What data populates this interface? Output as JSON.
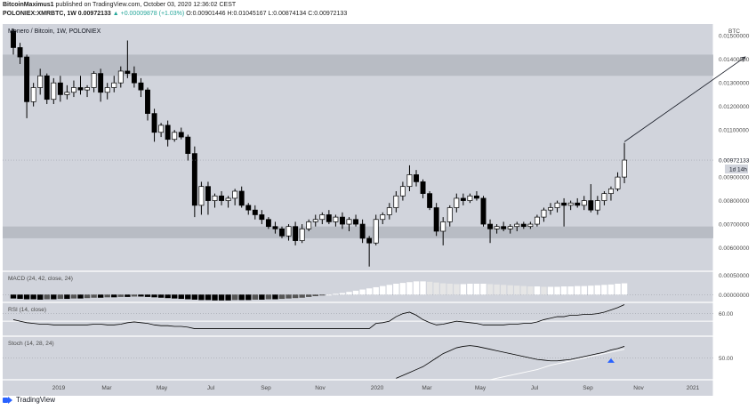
{
  "header": {
    "author": "BitcoinMaximus1",
    "published": "published on TradingView.com, October 03, 2020 12:36:02 CEST",
    "symbol": "POLONIEX:XMRBTC, 1W",
    "last": "0.00972133",
    "change": "▲ +0.00009878 (+1.03%)",
    "open": "O:0.00901446",
    "high": "H:0.01045167",
    "low": "L:0.00874134",
    "close": "C:0.00972133"
  },
  "footer": {
    "brand": "TradingView"
  },
  "colors": {
    "background": "#d1d4dc",
    "zone": "#b2b5be",
    "candle_down": "#000000",
    "candle_up": "#ffffff",
    "macd_bar": "#ffffff",
    "marker": "#2962ff"
  },
  "chart_data": {
    "type": "candlestick",
    "title": "Monero / Bitcoin, 1W, POLONIEX",
    "currency_label": "BTC",
    "last_price_label": "0.00972133",
    "countdown_label": "1d 14h",
    "y_tick_labels": [
      "0.01500000",
      "0.01400000",
      "0.01300000",
      "0.01200000",
      "0.01100000",
      "0.00900000",
      "0.00800000",
      "0.00700000",
      "0.00600000"
    ],
    "ylim": [
      0.005,
      0.0155
    ],
    "x_tick_labels": [
      "2019",
      "Mar",
      "May",
      "Jul",
      "Sep",
      "Nov",
      "2020",
      "Mar",
      "May",
      "Jul",
      "Sep",
      "Nov",
      "2021"
    ],
    "grid": false,
    "zones": [
      {
        "from": 0.0133,
        "to": 0.0142
      },
      {
        "from": 0.0064,
        "to": 0.0069
      }
    ],
    "ohlc": [
      [
        0.0152,
        0.0153,
        0.0142,
        0.0145
      ],
      [
        0.0145,
        0.0147,
        0.0138,
        0.0141
      ],
      [
        0.0141,
        0.0142,
        0.0115,
        0.0122
      ],
      [
        0.0122,
        0.013,
        0.012,
        0.0128
      ],
      [
        0.0128,
        0.0136,
        0.0125,
        0.0133
      ],
      [
        0.0133,
        0.0134,
        0.0121,
        0.0123
      ],
      [
        0.0123,
        0.0132,
        0.0121,
        0.013
      ],
      [
        0.013,
        0.0133,
        0.0122,
        0.0125
      ],
      [
        0.0125,
        0.0129,
        0.0123,
        0.0126
      ],
      [
        0.0126,
        0.0131,
        0.0124,
        0.0128
      ],
      [
        0.0128,
        0.0133,
        0.0125,
        0.0127
      ],
      [
        0.0127,
        0.0129,
        0.0124,
        0.0128
      ],
      [
        0.0128,
        0.0135,
        0.0126,
        0.0134
      ],
      [
        0.0134,
        0.0136,
        0.0122,
        0.0126
      ],
      [
        0.0126,
        0.013,
        0.0123,
        0.0128
      ],
      [
        0.0128,
        0.0133,
        0.0126,
        0.013
      ],
      [
        0.013,
        0.0137,
        0.0128,
        0.0135
      ],
      [
        0.0135,
        0.0148,
        0.0132,
        0.0134
      ],
      [
        0.0134,
        0.0137,
        0.0128,
        0.013
      ],
      [
        0.013,
        0.0132,
        0.0124,
        0.0127
      ],
      [
        0.0127,
        0.0128,
        0.0114,
        0.0117
      ],
      [
        0.0117,
        0.0119,
        0.0105,
        0.0109
      ],
      [
        0.0109,
        0.0113,
        0.0107,
        0.0112
      ],
      [
        0.0112,
        0.0114,
        0.0103,
        0.0106
      ],
      [
        0.0106,
        0.011,
        0.0105,
        0.0109
      ],
      [
        0.0109,
        0.0111,
        0.0106,
        0.0107
      ],
      [
        0.0107,
        0.0108,
        0.0097,
        0.01
      ],
      [
        0.01,
        0.0103,
        0.0073,
        0.0078
      ],
      [
        0.0078,
        0.0088,
        0.0074,
        0.0086
      ],
      [
        0.0086,
        0.0088,
        0.0074,
        0.008
      ],
      [
        0.008,
        0.0083,
        0.0077,
        0.0082
      ],
      [
        0.0082,
        0.0084,
        0.0078,
        0.008
      ],
      [
        0.008,
        0.0082,
        0.0077,
        0.0081
      ],
      [
        0.0081,
        0.0085,
        0.0078,
        0.0084
      ],
      [
        0.0084,
        0.0086,
        0.0077,
        0.0078
      ],
      [
        0.0078,
        0.0079,
        0.0074,
        0.0076
      ],
      [
        0.0076,
        0.0078,
        0.0072,
        0.0074
      ],
      [
        0.0074,
        0.0076,
        0.007,
        0.0072
      ],
      [
        0.0072,
        0.0073,
        0.0068,
        0.0069
      ],
      [
        0.0069,
        0.0071,
        0.0066,
        0.0068
      ],
      [
        0.0068,
        0.0069,
        0.0064,
        0.0065
      ],
      [
        0.0065,
        0.007,
        0.0063,
        0.0069
      ],
      [
        0.0069,
        0.0071,
        0.0061,
        0.0063
      ],
      [
        0.0063,
        0.007,
        0.0062,
        0.0068
      ],
      [
        0.0068,
        0.0072,
        0.0067,
        0.0071
      ],
      [
        0.0071,
        0.0074,
        0.0069,
        0.0072
      ],
      [
        0.0072,
        0.0075,
        0.007,
        0.0074
      ],
      [
        0.0074,
        0.0076,
        0.007,
        0.0071
      ],
      [
        0.0071,
        0.0074,
        0.0069,
        0.0073
      ],
      [
        0.0073,
        0.0075,
        0.0068,
        0.007
      ],
      [
        0.007,
        0.0073,
        0.0067,
        0.0072
      ],
      [
        0.0072,
        0.0074,
        0.0069,
        0.007
      ],
      [
        0.007,
        0.0072,
        0.0062,
        0.0064
      ],
      [
        0.0064,
        0.0065,
        0.0052,
        0.0062
      ],
      [
        0.0062,
        0.0074,
        0.0061,
        0.0072
      ],
      [
        0.0072,
        0.0075,
        0.007,
        0.0074
      ],
      [
        0.0074,
        0.0079,
        0.0072,
        0.0077
      ],
      [
        0.0077,
        0.0084,
        0.0075,
        0.0082
      ],
      [
        0.0082,
        0.0088,
        0.008,
        0.0086
      ],
      [
        0.0086,
        0.0095,
        0.0084,
        0.0091
      ],
      [
        0.0091,
        0.0093,
        0.0086,
        0.0088
      ],
      [
        0.0088,
        0.0089,
        0.0081,
        0.0083
      ],
      [
        0.0083,
        0.0084,
        0.0076,
        0.0077
      ],
      [
        0.0077,
        0.0079,
        0.0065,
        0.0067
      ],
      [
        0.0067,
        0.0073,
        0.0061,
        0.0071
      ],
      [
        0.0071,
        0.0078,
        0.0069,
        0.0077
      ],
      [
        0.0077,
        0.0083,
        0.0075,
        0.0081
      ],
      [
        0.0081,
        0.0083,
        0.0078,
        0.008
      ],
      [
        0.008,
        0.0083,
        0.0079,
        0.0082
      ],
      [
        0.0082,
        0.0084,
        0.008,
        0.0081
      ],
      [
        0.0081,
        0.0082,
        0.0069,
        0.007
      ],
      [
        0.007,
        0.0072,
        0.0062,
        0.0068
      ],
      [
        0.0068,
        0.007,
        0.0066,
        0.0069
      ],
      [
        0.0069,
        0.0071,
        0.0067,
        0.0068
      ],
      [
        0.0068,
        0.007,
        0.0066,
        0.0069
      ],
      [
        0.0069,
        0.0071,
        0.0067,
        0.007
      ],
      [
        0.007,
        0.0071,
        0.0068,
        0.0069
      ],
      [
        0.0069,
        0.0071,
        0.0068,
        0.007
      ],
      [
        0.007,
        0.0074,
        0.0069,
        0.0073
      ],
      [
        0.0073,
        0.0077,
        0.0071,
        0.0076
      ],
      [
        0.0076,
        0.0079,
        0.0074,
        0.0077
      ],
      [
        0.0077,
        0.008,
        0.0075,
        0.0079
      ],
      [
        0.0079,
        0.0081,
        0.0069,
        0.0078
      ],
      [
        0.0078,
        0.008,
        0.0076,
        0.0079
      ],
      [
        0.0079,
        0.0081,
        0.0077,
        0.0078
      ],
      [
        0.0078,
        0.0082,
        0.0076,
        0.008
      ],
      [
        0.008,
        0.0087,
        0.0075,
        0.0076
      ],
      [
        0.0076,
        0.0082,
        0.0074,
        0.008
      ],
      [
        0.008,
        0.0084,
        0.0078,
        0.0083
      ],
      [
        0.0083,
        0.0086,
        0.008,
        0.0085
      ],
      [
        0.0085,
        0.0092,
        0.0084,
        0.009
      ],
      [
        0.009,
        0.01045,
        0.00874,
        0.00972
      ]
    ],
    "annotation_arrow": {
      "from_index": 91,
      "from_price": 0.0105,
      "to_index": 109,
      "to_price": 0.0141
    },
    "macd": {
      "label": "MACD (24, 42, close, 24)",
      "tick_labels": [
        "0.00050000",
        "0.00000000"
      ],
      "ylim": [
        -0.0002,
        0.0006
      ],
      "values": [
        -0.0001,
        -0.00011,
        -0.00012,
        -0.00012,
        -0.00013,
        -0.00012,
        -0.00012,
        -0.00011,
        -0.00011,
        -0.0001,
        -0.0001,
        -9e-05,
        -8e-05,
        -8e-05,
        -7e-05,
        -7e-05,
        -6e-05,
        -6e-05,
        -5e-05,
        -5e-05,
        -6e-05,
        -7e-05,
        -8e-05,
        -9e-05,
        -0.0001,
        -0.00011,
        -0.00012,
        -0.00013,
        -0.00014,
        -0.00014,
        -0.00015,
        -0.00015,
        -0.00015,
        -0.00014,
        -0.00014,
        -0.00014,
        -0.00013,
        -0.00013,
        -0.00012,
        -0.00012,
        -0.00011,
        -0.0001,
        -9e-05,
        -8e-05,
        -6e-05,
        -4e-05,
        -2e-05,
        0.0,
        2e-05,
        4e-05,
        7e-05,
        0.0001,
        0.00013,
        0.00016,
        0.00019,
        0.00022,
        0.00025,
        0.00028,
        0.0003,
        0.00032,
        0.00034,
        0.00034,
        0.00033,
        0.00031,
        0.00029,
        0.00028,
        0.00027,
        0.00027,
        0.00028,
        0.00028,
        0.00028,
        0.00027,
        0.00026,
        0.00025,
        0.00024,
        0.00023,
        0.00022,
        0.00021,
        0.00021,
        0.0002,
        0.0002,
        0.0002,
        0.00021,
        0.00021,
        0.00022,
        0.00022,
        0.00023,
        0.00024,
        0.00025,
        0.00026,
        0.00028,
        0.00029
      ]
    },
    "rsi": {
      "label": "RSI (14, close)",
      "tick_labels": [
        "60.00"
      ],
      "ylim": [
        30,
        75
      ],
      "value_line": 50,
      "values": [
        52,
        50,
        48,
        47,
        46,
        46,
        45,
        45,
        45,
        45,
        45,
        45,
        46,
        46,
        45,
        45,
        46,
        48,
        49,
        48,
        47,
        45,
        44,
        44,
        43,
        43,
        42,
        40,
        40,
        40,
        40,
        40,
        40,
        40,
        40,
        40,
        40,
        40,
        40,
        40,
        40,
        40,
        40,
        40,
        40,
        40,
        40,
        40,
        40,
        40,
        40,
        40,
        40,
        40,
        47,
        48,
        50,
        56,
        60,
        62,
        58,
        52,
        48,
        45,
        46,
        48,
        50,
        49,
        48,
        47,
        45,
        45,
        45,
        45,
        46,
        46,
        47,
        47,
        49,
        52,
        54,
        56,
        56,
        58,
        58,
        59,
        59,
        60,
        62,
        65,
        68,
        72
      ]
    },
    "stoch": {
      "label": "Stoch (14, 28, 24)",
      "tick_labels": [
        "50.00"
      ],
      "ylim": [
        20,
        80
      ],
      "k_values": [
        null,
        null,
        null,
        null,
        null,
        null,
        null,
        null,
        null,
        null,
        null,
        null,
        null,
        null,
        null,
        null,
        null,
        null,
        null,
        null,
        null,
        null,
        null,
        null,
        null,
        null,
        null,
        null,
        null,
        null,
        null,
        null,
        null,
        null,
        null,
        null,
        null,
        null,
        null,
        null,
        null,
        null,
        null,
        null,
        null,
        null,
        null,
        null,
        null,
        null,
        null,
        null,
        null,
        null,
        null,
        null,
        null,
        22,
        26,
        30,
        34,
        38,
        44,
        50,
        56,
        60,
        64,
        66,
        67,
        66,
        64,
        62,
        60,
        58,
        56,
        54,
        52,
        50,
        48,
        47,
        46,
        46,
        47,
        48,
        50,
        52,
        54,
        56,
        58,
        61,
        63,
        66
      ],
      "d_values": [
        null,
        null,
        null,
        null,
        null,
        null,
        null,
        null,
        null,
        null,
        null,
        null,
        null,
        null,
        null,
        null,
        null,
        null,
        null,
        null,
        null,
        null,
        null,
        null,
        null,
        null,
        null,
        null,
        null,
        null,
        null,
        null,
        null,
        null,
        null,
        null,
        null,
        null,
        null,
        null,
        null,
        null,
        null,
        null,
        null,
        null,
        null,
        null,
        null,
        null,
        null,
        null,
        null,
        null,
        null,
        null,
        null,
        null,
        null,
        null,
        null,
        null,
        null,
        null,
        null,
        null,
        null,
        null,
        null,
        null,
        null,
        20,
        22,
        24,
        26,
        28,
        30,
        32,
        34,
        37,
        40,
        42,
        44,
        46,
        48,
        50,
        52,
        54,
        56,
        58,
        60,
        62
      ],
      "marker_index": 89,
      "marker_value": 52
    }
  }
}
